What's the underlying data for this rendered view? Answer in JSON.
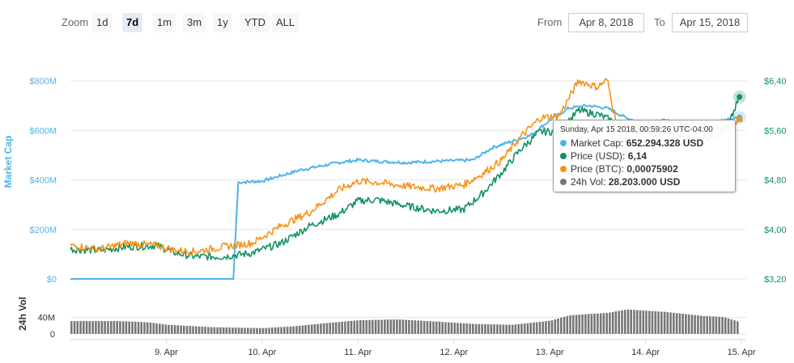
{
  "range_selector": {
    "zoom_label": "Zoom",
    "buttons": [
      "1d",
      "7d",
      "1m",
      "3m",
      "1y",
      "YTD",
      "ALL"
    ],
    "active": "7d",
    "from_label": "From",
    "from_value": "Apr 8, 2018",
    "to_label": "To",
    "to_value": "Apr 15, 2018"
  },
  "tooltip": {
    "header": "Sunday, Apr 15 2018, 00:59:26 UTC-04:00",
    "rows": [
      {
        "label": "Market Cap:",
        "value": "652.294.328 USD",
        "color": "#4fb4e8"
      },
      {
        "label": "Price (USD):",
        "value": "6,14",
        "color": "#11925e"
      },
      {
        "label": "Price (BTC):",
        "value": "0,00075902",
        "color": "#f7931a"
      },
      {
        "label": "24h Vol:",
        "value": "28.203.000 USD",
        "color": "#777777"
      }
    ]
  },
  "chart_data": {
    "type": "line",
    "x_ticks": [
      "9. Apr",
      "10. Apr",
      "11. Apr",
      "12. Apr",
      "13. Apr",
      "14. Apr",
      "15. Apr"
    ],
    "left_axis": {
      "title": "Market Cap",
      "ticks": [
        "$0",
        "$200M",
        "$400M",
        "$600M",
        "$800M"
      ],
      "range": [
        0,
        800000000
      ]
    },
    "right_axis": {
      "ticks": [
        "$3,20",
        "$4,00",
        "$4,80",
        "$5,60",
        "$6,40"
      ],
      "range": [
        3.2,
        6.4
      ]
    },
    "volume_axis": {
      "title": "24h Vol",
      "ticks": [
        "0",
        "40M"
      ],
      "range": [
        0,
        80000000
      ]
    },
    "colors": {
      "market_cap": "#4fb4e8",
      "price_usd": "#11925e",
      "price_btc": "#f7931a",
      "volume": "#777777"
    },
    "series": [
      {
        "name": "Market Cap",
        "axis": "left",
        "values": [
          [
            0.0,
            0
          ],
          [
            1.7,
            0
          ],
          [
            1.75,
            390000000
          ],
          [
            2.0,
            395000000
          ],
          [
            2.4,
            440000000
          ],
          [
            2.8,
            470000000
          ],
          [
            3.0,
            480000000
          ],
          [
            3.2,
            475000000
          ],
          [
            3.5,
            470000000
          ],
          [
            3.8,
            475000000
          ],
          [
            4.2,
            480000000
          ],
          [
            4.4,
            530000000
          ],
          [
            4.6,
            555000000
          ],
          [
            4.8,
            580000000
          ],
          [
            5.0,
            640000000
          ],
          [
            5.2,
            690000000
          ],
          [
            5.4,
            700000000
          ],
          [
            5.6,
            690000000
          ],
          [
            5.8,
            650000000
          ],
          [
            6.0,
            630000000
          ],
          [
            6.2,
            640000000
          ],
          [
            6.4,
            625000000
          ],
          [
            6.6,
            630000000
          ],
          [
            6.8,
            640000000
          ],
          [
            6.98,
            652294328
          ]
        ]
      },
      {
        "name": "Price (USD)",
        "axis": "right",
        "values": [
          [
            0.0,
            3.68
          ],
          [
            0.3,
            3.66
          ],
          [
            0.6,
            3.72
          ],
          [
            0.9,
            3.74
          ],
          [
            1.1,
            3.62
          ],
          [
            1.3,
            3.56
          ],
          [
            1.6,
            3.56
          ],
          [
            1.9,
            3.62
          ],
          [
            2.2,
            3.78
          ],
          [
            2.5,
            4.06
          ],
          [
            2.8,
            4.25
          ],
          [
            3.0,
            4.46
          ],
          [
            3.2,
            4.48
          ],
          [
            3.5,
            4.38
          ],
          [
            3.8,
            4.3
          ],
          [
            4.1,
            4.32
          ],
          [
            4.3,
            4.58
          ],
          [
            4.5,
            4.92
          ],
          [
            4.7,
            5.3
          ],
          [
            4.9,
            5.58
          ],
          [
            5.1,
            5.58
          ],
          [
            5.3,
            5.92
          ],
          [
            5.5,
            5.86
          ],
          [
            5.7,
            5.72
          ],
          [
            5.9,
            5.62
          ],
          [
            6.1,
            5.58
          ],
          [
            6.3,
            5.52
          ],
          [
            6.5,
            5.45
          ],
          [
            6.7,
            5.5
          ],
          [
            6.85,
            5.62
          ],
          [
            6.98,
            6.14
          ]
        ]
      },
      {
        "name": "Price (BTC)",
        "axis": "right",
        "values": [
          [
            0.0,
            3.74
          ],
          [
            0.3,
            3.68
          ],
          [
            0.6,
            3.78
          ],
          [
            0.9,
            3.74
          ],
          [
            1.1,
            3.66
          ],
          [
            1.3,
            3.64
          ],
          [
            1.6,
            3.72
          ],
          [
            1.9,
            3.78
          ],
          [
            2.2,
            4.06
          ],
          [
            2.5,
            4.28
          ],
          [
            2.8,
            4.64
          ],
          [
            3.0,
            4.78
          ],
          [
            3.2,
            4.76
          ],
          [
            3.5,
            4.7
          ],
          [
            3.8,
            4.66
          ],
          [
            4.1,
            4.72
          ],
          [
            4.3,
            4.9
          ],
          [
            4.5,
            5.12
          ],
          [
            4.7,
            5.5
          ],
          [
            4.9,
            5.8
          ],
          [
            5.1,
            5.84
          ],
          [
            5.3,
            6.4
          ],
          [
            5.5,
            6.3
          ],
          [
            5.6,
            6.42
          ],
          [
            5.7,
            5.68
          ],
          [
            5.9,
            5.66
          ],
          [
            6.1,
            5.56
          ],
          [
            6.3,
            5.66
          ],
          [
            6.5,
            5.54
          ],
          [
            6.7,
            5.62
          ],
          [
            6.85,
            5.58
          ],
          [
            6.98,
            5.78
          ]
        ]
      },
      {
        "name": "24h Vol",
        "axis": "volume",
        "values": [
          [
            0.0,
            31000000
          ],
          [
            0.5,
            31000000
          ],
          [
            0.8,
            28000000
          ],
          [
            1.0,
            22000000
          ],
          [
            1.5,
            16000000
          ],
          [
            2.0,
            14000000
          ],
          [
            2.3,
            18000000
          ],
          [
            2.7,
            27000000
          ],
          [
            3.0,
            33000000
          ],
          [
            3.4,
            35000000
          ],
          [
            3.8,
            30000000
          ],
          [
            4.2,
            24000000
          ],
          [
            4.6,
            22000000
          ],
          [
            5.0,
            32000000
          ],
          [
            5.2,
            45000000
          ],
          [
            5.6,
            51000000
          ],
          [
            5.8,
            59000000
          ],
          [
            6.2,
            53000000
          ],
          [
            6.6,
            43000000
          ],
          [
            6.8,
            41000000
          ],
          [
            6.98,
            28203000
          ]
        ]
      }
    ],
    "legend": "none",
    "grid": true
  }
}
